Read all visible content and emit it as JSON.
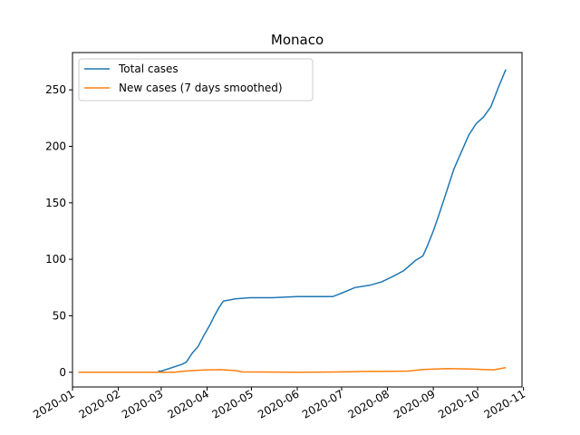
{
  "chart_data": {
    "type": "line",
    "title": "Monaco",
    "xlabel": "",
    "ylabel": "",
    "x_type": "date",
    "xlim": [
      "2020-01-01",
      "2020-10-31"
    ],
    "ylim": [
      -13,
      283
    ],
    "x_ticks": [
      "2020-01",
      "2020-02",
      "2020-03",
      "2020-04",
      "2020-05",
      "2020-06",
      "2020-07",
      "2020-08",
      "2020-09",
      "2020-10",
      "2020-11"
    ],
    "y_ticks": [
      0,
      50,
      100,
      150,
      200,
      250
    ],
    "grid": false,
    "legend": "top-left",
    "series": [
      {
        "name": "Total cases",
        "color": "#1f77b4",
        "points": [
          [
            "2020-02-28",
            1
          ],
          [
            "2020-03-01",
            1
          ],
          [
            "2020-03-15",
            7
          ],
          [
            "2020-03-18",
            9
          ],
          [
            "2020-03-22",
            17
          ],
          [
            "2020-03-26",
            23
          ],
          [
            "2020-03-30",
            33
          ],
          [
            "2020-04-03",
            42
          ],
          [
            "2020-04-06",
            50
          ],
          [
            "2020-04-09",
            57
          ],
          [
            "2020-04-12",
            63
          ],
          [
            "2020-04-20",
            65
          ],
          [
            "2020-04-30",
            66
          ],
          [
            "2020-05-15",
            66
          ],
          [
            "2020-06-01",
            67
          ],
          [
            "2020-06-15",
            67
          ],
          [
            "2020-06-25",
            67
          ],
          [
            "2020-07-01",
            70
          ],
          [
            "2020-07-10",
            75
          ],
          [
            "2020-07-20",
            77
          ],
          [
            "2020-07-28",
            80
          ],
          [
            "2020-08-05",
            85
          ],
          [
            "2020-08-12",
            90
          ],
          [
            "2020-08-20",
            99
          ],
          [
            "2020-08-25",
            103
          ],
          [
            "2020-08-28",
            112
          ],
          [
            "2020-09-01",
            125
          ],
          [
            "2020-09-05",
            140
          ],
          [
            "2020-09-10",
            160
          ],
          [
            "2020-09-15",
            180
          ],
          [
            "2020-09-20",
            195
          ],
          [
            "2020-09-25",
            210
          ],
          [
            "2020-09-30",
            220
          ],
          [
            "2020-10-05",
            226
          ],
          [
            "2020-10-10",
            235
          ],
          [
            "2020-10-15",
            252
          ],
          [
            "2020-10-20",
            268
          ]
        ]
      },
      {
        "name": "New cases (7 days smoothed)",
        "color": "#ff7f0e",
        "points": [
          [
            "2020-01-05",
            0
          ],
          [
            "2020-02-15",
            0
          ],
          [
            "2020-03-10",
            0
          ],
          [
            "2020-03-15",
            0.8
          ],
          [
            "2020-03-22",
            1.5
          ],
          [
            "2020-03-30",
            2
          ],
          [
            "2020-04-10",
            2.3
          ],
          [
            "2020-04-20",
            1.5
          ],
          [
            "2020-04-25",
            0.3
          ],
          [
            "2020-05-10",
            0.2
          ],
          [
            "2020-06-01",
            0.1
          ],
          [
            "2020-06-25",
            0.2
          ],
          [
            "2020-07-05",
            0.5
          ],
          [
            "2020-07-15",
            0.7
          ],
          [
            "2020-08-01",
            0.8
          ],
          [
            "2020-08-15",
            1
          ],
          [
            "2020-08-25",
            2.5
          ],
          [
            "2020-09-10",
            3.2
          ],
          [
            "2020-09-25",
            3
          ],
          [
            "2020-10-05",
            2.5
          ],
          [
            "2020-10-12",
            2.2
          ],
          [
            "2020-10-20",
            4.2
          ]
        ]
      }
    ]
  }
}
